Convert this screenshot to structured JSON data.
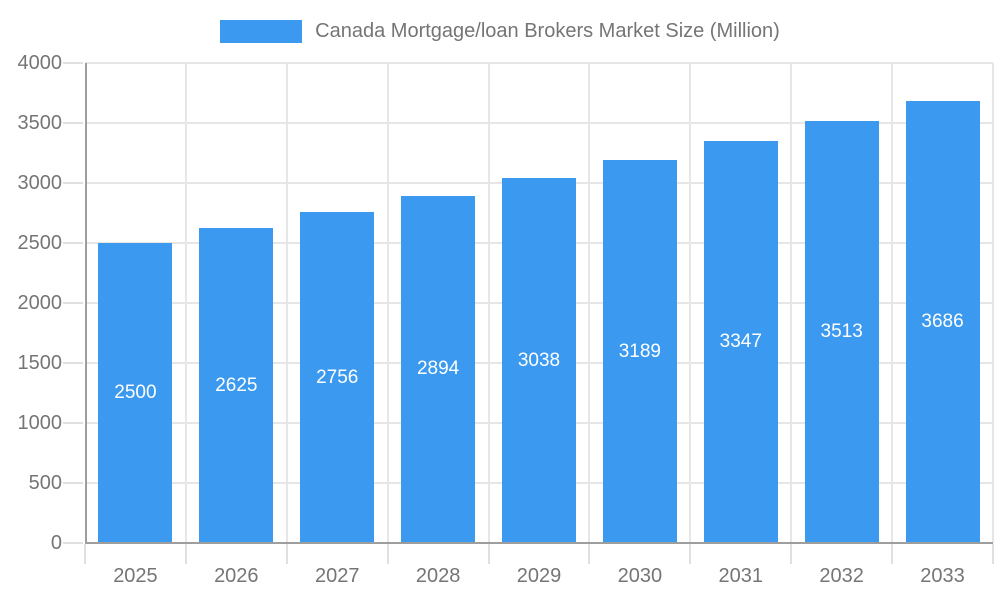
{
  "legend": {
    "label": "Canada Mortgage/loan Brokers Market Size (Million)"
  },
  "chart_data": {
    "type": "bar",
    "title": "Canada Mortgage/loan Brokers Market Size (Million)",
    "categories": [
      "2025",
      "2026",
      "2027",
      "2028",
      "2029",
      "2030",
      "2031",
      "2032",
      "2033"
    ],
    "values": [
      2500,
      2625,
      2756,
      2894,
      3038,
      3189,
      3347,
      3513,
      3686
    ],
    "xlabel": "",
    "ylabel": "",
    "ylim": [
      0,
      4000
    ],
    "ytick_step": 500,
    "ytick_labels": [
      "0",
      "500",
      "1000",
      "1500",
      "2000",
      "2500",
      "3000",
      "3500",
      "4000"
    ],
    "grid": true,
    "legend_position": "top",
    "bar_color": "#3b9af0",
    "value_label_color": "#ffffff",
    "axis_color": "#9e9e9e",
    "gridline_color": "#e6e6e6",
    "tick_color": "#e0e0e0",
    "text_color": "#757575"
  }
}
